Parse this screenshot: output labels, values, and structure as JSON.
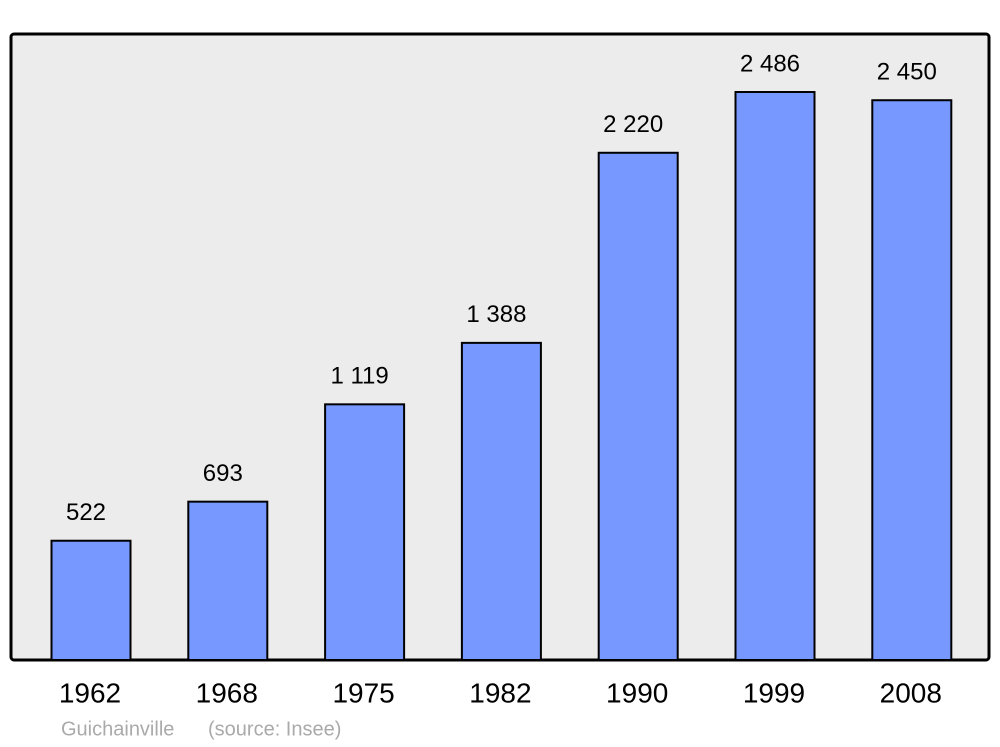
{
  "chart_data": {
    "type": "bar",
    "categories": [
      "1962",
      "1968",
      "1975",
      "1982",
      "1990",
      "1999",
      "2008"
    ],
    "values": [
      522,
      693,
      1119,
      1388,
      2220,
      2486,
      2450
    ],
    "value_labels": [
      "522",
      "693",
      "1 119",
      "1 388",
      "2 220",
      "2 486",
      "2 450"
    ],
    "color": "#7799ff",
    "footer": {
      "place": "Guichainville",
      "source": "(source: Insee)"
    }
  }
}
